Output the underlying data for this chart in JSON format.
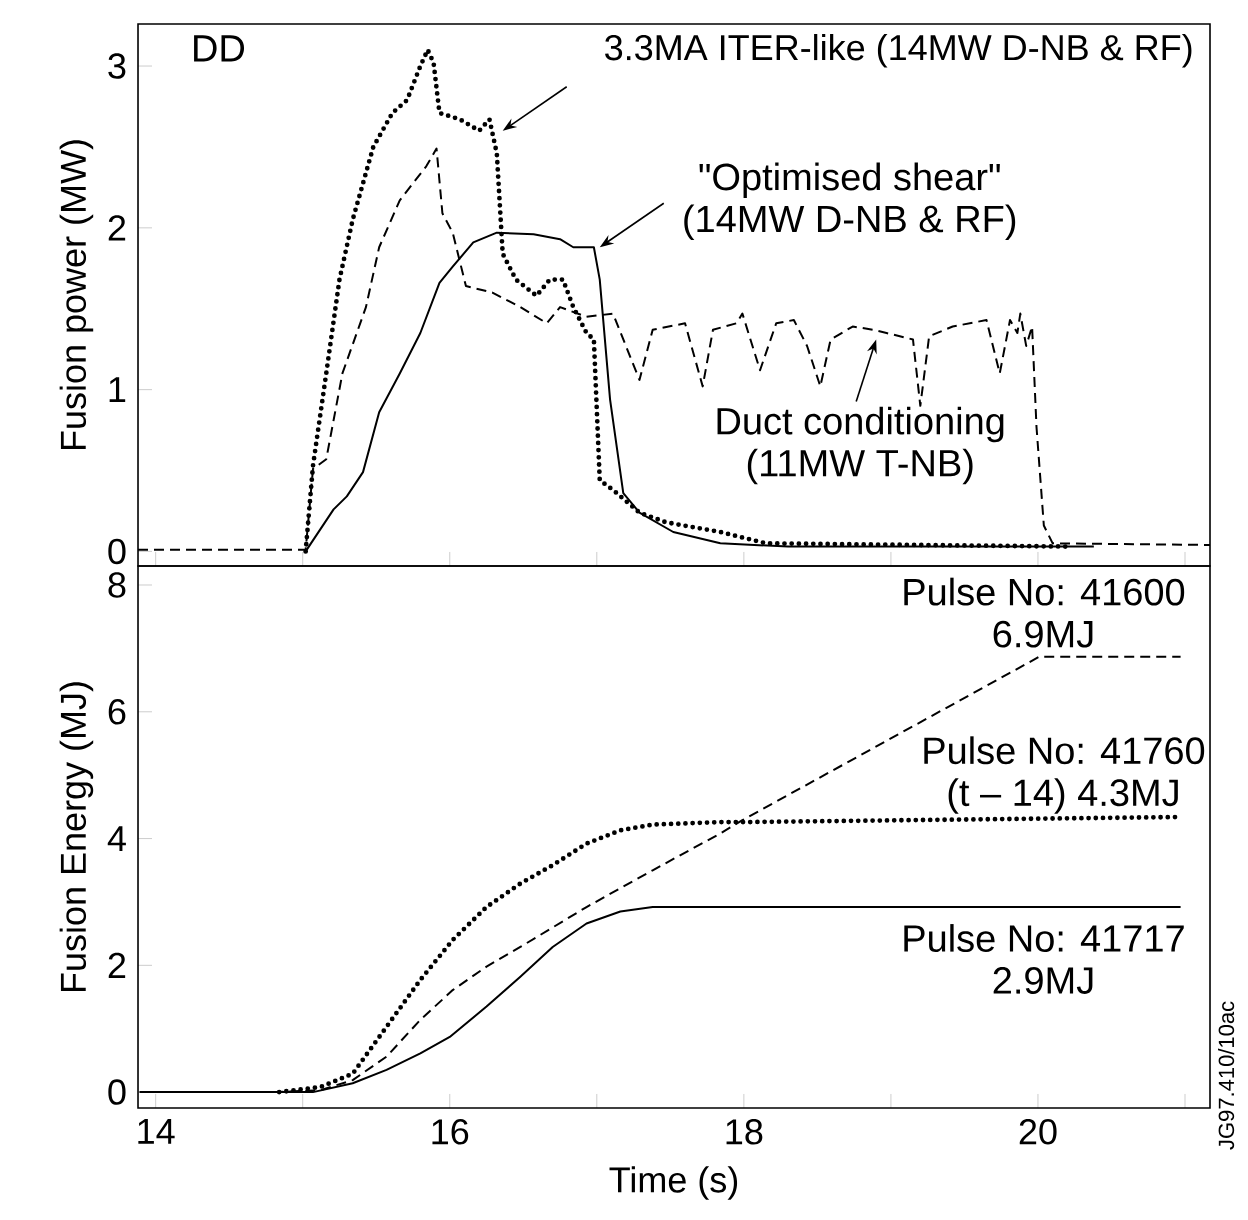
{
  "chart_data": [
    {
      "type": "line",
      "ylabel": "Fusion power (MW)",
      "xlim": [
        13.88,
        21.17
      ],
      "xticks": [
        14,
        {
          "value": 15,
          "label": null
        },
        16,
        {
          "value": 17,
          "label": null
        },
        18,
        {
          "value": 19,
          "label": null
        },
        20,
        {
          "value": 21,
          "label": null
        }
      ],
      "ylim": [
        -0.09,
        3.26
      ],
      "yticks": [
        0,
        1,
        2,
        3
      ],
      "tick_labels": "y",
      "annotations": [
        "DD",
        {
          "text": "3.3MA ITER-like (14MW D-NB & RF)",
          "x": 16.36,
          "y": 2.6
        },
        {
          "text": "\"Optimised shear\" (14MW D-NB & RF)",
          "x": 17.02,
          "y": 1.88
        },
        {
          "text": "Duct conditioning (11MW T-NB)",
          "x": 18.9,
          "y": 1.31
        }
      ],
      "series": [
        {
          "color": "#000000",
          "line_style": "dashed",
          "x": [
            13.88,
            15.02,
            15.07,
            15.16,
            15.27,
            15.43,
            15.52,
            15.66,
            15.84,
            15.91,
            15.95,
            16.02,
            16.11,
            16.29,
            16.48,
            16.66,
            16.75,
            16.93,
            17.11,
            17.29,
            17.38,
            17.6,
            17.72,
            17.79,
            17.95,
            17.99,
            18.11,
            18.22,
            18.34,
            18.43,
            18.52,
            18.59,
            18.74,
            18.88,
            18.97,
            19.15,
            19.2,
            19.26,
            19.42,
            19.65,
            19.74,
            19.81,
            19.86,
            19.88,
            19.92,
            19.96,
            19.99,
            20.04,
            20.1,
            21.17
          ],
          "values": [
            0.01,
            0.01,
            0.51,
            0.57,
            1.1,
            1.51,
            1.88,
            2.17,
            2.38,
            2.49,
            2.09,
            1.97,
            1.64,
            1.6,
            1.51,
            1.41,
            1.51,
            1.45,
            1.47,
            1.06,
            1.37,
            1.41,
            1.02,
            1.37,
            1.41,
            1.47,
            1.12,
            1.41,
            1.43,
            1.27,
            1.02,
            1.31,
            1.39,
            1.37,
            1.35,
            1.31,
            0.9,
            1.33,
            1.39,
            1.43,
            1.1,
            1.43,
            1.35,
            1.47,
            1.27,
            1.39,
            0.77,
            0.16,
            0.05,
            0.04
          ]
        },
        {
          "color": "#000000",
          "line_style": "dotted",
          "x": [
            15.02,
            15.07,
            15.16,
            15.25,
            15.34,
            15.48,
            15.61,
            15.71,
            15.8,
            15.85,
            15.89,
            15.93,
            16.07,
            16.2,
            16.27,
            16.32,
            16.36,
            16.45,
            16.59,
            16.68,
            16.77,
            16.84,
            16.93,
            16.98,
            17.02,
            17.11,
            17.29,
            17.47,
            17.84,
            18.15,
            20.2
          ],
          "values": [
            0,
            0.53,
            1.1,
            1.68,
            2.05,
            2.5,
            2.71,
            2.79,
            3.0,
            3.1,
            3.02,
            2.71,
            2.67,
            2.6,
            2.67,
            2.46,
            1.84,
            1.68,
            1.58,
            1.68,
            1.68,
            1.51,
            1.35,
            1.31,
            0.44,
            0.38,
            0.24,
            0.18,
            0.12,
            0.05,
            0.03
          ]
        },
        {
          "color": "#000000",
          "line_style": "solid",
          "x": [
            15.02,
            15.21,
            15.3,
            15.41,
            15.52,
            15.66,
            15.8,
            15.93,
            16.02,
            16.16,
            16.32,
            16.57,
            16.75,
            16.84,
            16.98,
            17.02,
            17.09,
            17.18,
            17.29,
            17.52,
            17.84,
            18.3,
            20.38
          ],
          "values": [
            0,
            0.26,
            0.34,
            0.49,
            0.86,
            1.1,
            1.35,
            1.66,
            1.76,
            1.91,
            1.97,
            1.96,
            1.93,
            1.88,
            1.88,
            1.68,
            0.94,
            0.36,
            0.24,
            0.12,
            0.05,
            0.03,
            0.03
          ]
        }
      ]
    },
    {
      "type": "line",
      "xlabel": "Time (s)",
      "ylabel": "Fusion Energy (MJ)",
      "xlim": [
        13.88,
        21.17
      ],
      "xticks": [
        14,
        {
          "value": 15,
          "label": null
        },
        16,
        {
          "value": 17,
          "label": null
        },
        18,
        {
          "value": 19,
          "label": null
        },
        20,
        {
          "value": 21,
          "label": null
        }
      ],
      "ylim": [
        -0.25,
        8.3
      ],
      "yticks": [
        0,
        2,
        4,
        6,
        8
      ],
      "annotations": [
        {
          "text": "Pulse No: 41600 6.9MJ",
          "x": 20.5,
          "y": 6.87
        },
        {
          "text": "Pulse No: 41760 (t – 14) 4.3MJ",
          "x": 20.5,
          "y": 4.34
        },
        {
          "text": "Pulse No: 41717 2.9MJ",
          "x": 20.5,
          "y": 2.92
        },
        "JG97.410/10ac"
      ],
      "series": [
        {
          "color": "#000000",
          "line_style": "dashed",
          "x": [
            14.8,
            15.12,
            15.34,
            15.57,
            15.8,
            16.02,
            16.25,
            16.48,
            16.93,
            17.38,
            17.84,
            17.99,
            20.01,
            20.97
          ],
          "values": [
            0,
            0.03,
            0.19,
            0.56,
            1.14,
            1.61,
            1.98,
            2.29,
            2.92,
            3.5,
            4.08,
            4.29,
            6.87,
            6.87
          ]
        },
        {
          "color": "#000000",
          "line_style": "dotted",
          "x": [
            14.84,
            15.12,
            15.34,
            15.57,
            15.8,
            16.02,
            16.25,
            16.48,
            16.7,
            16.93,
            17.16,
            17.38,
            17.84,
            18.02,
            20.97
          ],
          "values": [
            0,
            0.08,
            0.29,
            1.03,
            1.77,
            2.4,
            2.92,
            3.29,
            3.58,
            3.92,
            4.13,
            4.22,
            4.26,
            4.26,
            4.34
          ]
        },
        {
          "color": "#000000",
          "line_style": "solid",
          "x": [
            13.89,
            15.07,
            15.34,
            15.57,
            15.8,
            16.0,
            16.25,
            16.48,
            16.7,
            16.93,
            17.16,
            17.38,
            17.47,
            20.97
          ],
          "values": [
            0,
            0,
            0.14,
            0.35,
            0.61,
            0.87,
            1.35,
            1.82,
            2.29,
            2.66,
            2.85,
            2.92,
            2.92,
            2.92
          ]
        }
      ]
    }
  ]
}
